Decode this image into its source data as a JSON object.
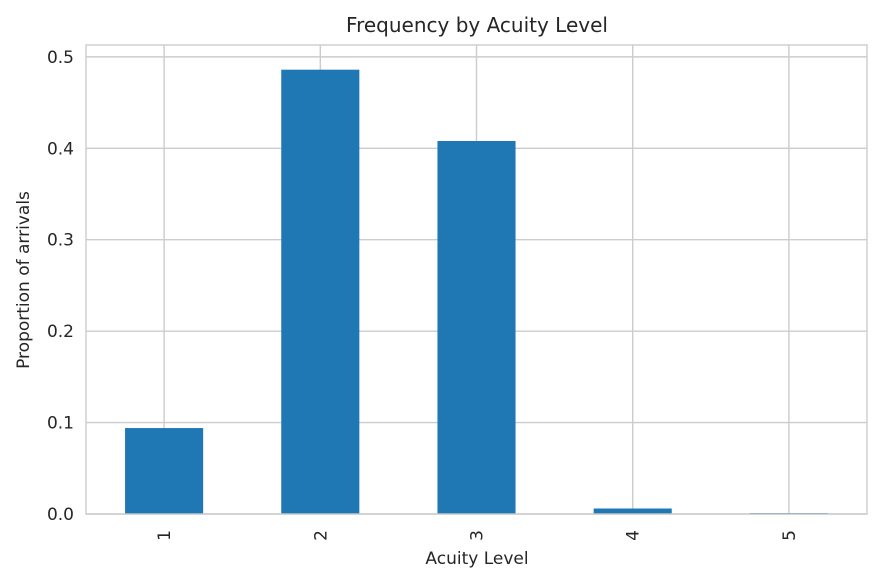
{
  "chart_data": {
    "type": "bar",
    "title": "Frequency by Acuity Level",
    "xlabel": "Acuity Level",
    "ylabel": "Proportion of arrivals",
    "categories": [
      "1",
      "2",
      "3",
      "4",
      "5"
    ],
    "values": [
      0.094,
      0.486,
      0.408,
      0.006,
      0.001
    ],
    "ylim": [
      0,
      0.513
    ],
    "yticks": [
      "0.0",
      "0.1",
      "0.2",
      "0.3",
      "0.4",
      "0.5"
    ],
    "grid": true,
    "bar_color": "#1f77b4",
    "grid_color": "#cccccc"
  }
}
